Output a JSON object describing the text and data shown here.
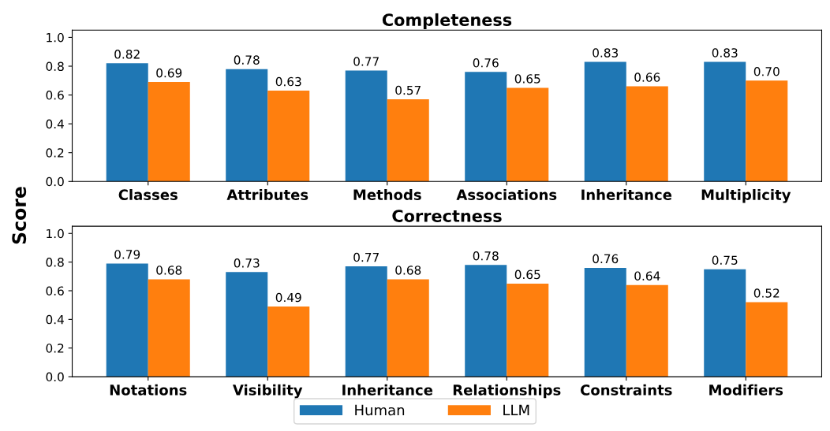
{
  "chart_data": [
    {
      "type": "bar",
      "title": "Completeness",
      "ylabel": "Score",
      "categories": [
        "Classes",
        "Attributes",
        "Methods",
        "Associations",
        "Inheritance",
        "Multiplicity"
      ],
      "series": [
        {
          "color": "#1f77b4",
          "values": [
            0.82,
            0.78,
            0.77,
            0.76,
            0.83,
            0.83
          ],
          "value_labels": [
            "0.82",
            "0.78",
            "0.77",
            "0.76",
            "0.83",
            "0.83"
          ]
        },
        {
          "color": "#ff7f0e",
          "values": [
            0.69,
            0.63,
            0.57,
            0.65,
            0.66,
            0.7
          ],
          "value_labels": [
            "0.69",
            "0.63",
            "0.57",
            "0.65",
            "0.66",
            "0.70"
          ]
        }
      ],
      "ylim": [
        0,
        1.05
      ],
      "yticks": [
        {
          "value": 0,
          "label": "0.0"
        },
        {
          "value": 0.2,
          "label": "0.2"
        },
        {
          "value": 0.4,
          "label": "0.4"
        },
        {
          "value": 0.6,
          "label": "0.6"
        },
        {
          "value": 0.8,
          "label": "0.8"
        },
        {
          "value": 1,
          "label": "1.0"
        }
      ],
      "grid": false,
      "legend": false
    },
    {
      "type": "bar",
      "title": "Correctness",
      "categories": [
        "Notations",
        "Visibility",
        "Inheritance",
        "Relationships",
        "Constraints",
        "Modifiers"
      ],
      "series": [
        {
          "name": "Human",
          "color": "#1f77b4",
          "values": [
            0.79,
            0.73,
            0.77,
            0.78,
            0.76,
            0.75
          ],
          "value_labels": [
            "0.79",
            "0.73",
            "0.77",
            "0.78",
            "0.76",
            "0.75"
          ]
        },
        {
          "name": "LLM",
          "color": "#ff7f0e",
          "values": [
            0.68,
            0.49,
            0.68,
            0.65,
            0.64,
            0.52
          ],
          "value_labels": [
            "0.68",
            "0.49",
            "0.68",
            "0.65",
            "0.64",
            "0.52"
          ]
        }
      ],
      "ylim": [
        0,
        1.05
      ],
      "yticks": [
        {
          "value": 0,
          "label": "0.0"
        },
        {
          "value": 0.2,
          "label": "0.2"
        },
        {
          "value": 0.4,
          "label": "0.4"
        },
        {
          "value": 0.6,
          "label": "0.6"
        },
        {
          "value": 0.8,
          "label": "0.8"
        },
        {
          "value": 1,
          "label": "1.0"
        }
      ],
      "grid": false,
      "legend": "bottom"
    }
  ]
}
